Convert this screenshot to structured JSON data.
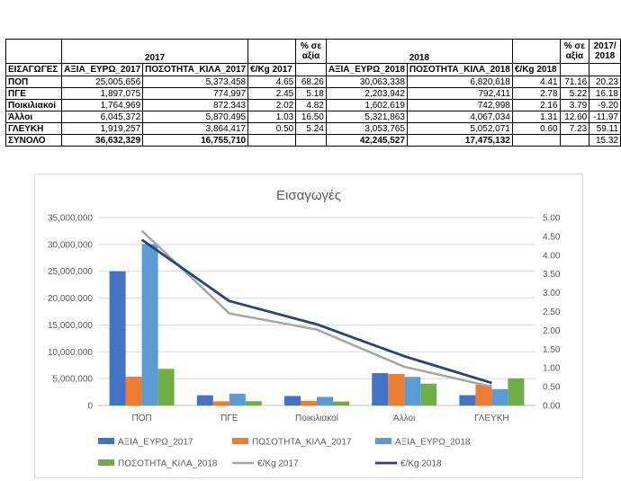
{
  "table": {
    "head1": {
      "y2017": "2017",
      "pct2017": "% σε αξία",
      "y2018": "2018",
      "pct2018": "% σε αξία",
      "change": "2017/2018"
    },
    "head2": [
      "ΕΙΣΑΓΩΓΕΣ",
      "ΑΞΙΑ_ΕΥΡΩ_2017",
      "ΠΟΣΟΤΗΤΑ_ΚΙΛΑ_2017",
      "€/Kg 2017",
      "",
      "ΑΞΙΑ_ΕΥΡΩ_2018",
      "ΠΟΣΟΤΗΤΑ_ΚΙΛΑ_2018",
      "€/Kg 2018",
      "",
      ""
    ],
    "rows": [
      [
        "ΠΟΠ",
        "25,005,656",
        "5,373,458",
        "4.65",
        "68.26",
        "30,063,338",
        "6,820,618",
        "4.41",
        "71.16",
        "20.23"
      ],
      [
        "ΠΓΕ",
        "1,897,075",
        "774,997",
        "2.45",
        "5.18",
        "2,203,942",
        "792,411",
        "2.78",
        "5.22",
        "16.18"
      ],
      [
        "Ποικιλιακοί",
        "1,764,969",
        "872,343",
        "2.02",
        "4.82",
        "1,602,619",
        "742,998",
        "2.16",
        "3.79",
        "-9.20"
      ],
      [
        "Άλλοι",
        "6,045,372",
        "5,870,495",
        "1.03",
        "16.50",
        "5,321,863",
        "4,067,034",
        "1.31",
        "12.60",
        "-11.97"
      ],
      [
        "ΓΛΕΥΚΗ",
        "1,919,257",
        "3,864,417",
        "0.50",
        "5.24",
        "3,053,765",
        "5,052,071",
        "0.60",
        "7.23",
        "59.11"
      ]
    ],
    "total": [
      "ΣΥΝΟΛΟ",
      "36,632,329",
      "16,755,710",
      "",
      "",
      "42,245,527",
      "17,475,132",
      "",
      "",
      "15.32"
    ]
  },
  "chart_data": {
    "type": "bar",
    "title": "Εισαγωγές",
    "categories": [
      "ΠΟΠ",
      "ΠΓΕ",
      "Ποικιλιακοί",
      "Άλλοι",
      "ΓΛΕΥΚΗ"
    ],
    "series": [
      {
        "name": "ΑΞΙΑ_ΕΥΡΩ_2017",
        "type": "bar",
        "axis": "left",
        "color": "#4472c4",
        "values": [
          25005656,
          1897075,
          1764969,
          6045372,
          1919257
        ]
      },
      {
        "name": "ΠΟΣΟΤΗΤΑ_ΚΙΛΑ_2017",
        "type": "bar",
        "axis": "left",
        "color": "#ed7d31",
        "values": [
          5373458,
          774997,
          872343,
          5870495,
          3864417
        ]
      },
      {
        "name": "ΑΞΙΑ_ΕΥΡΩ_2018",
        "type": "bar",
        "axis": "left",
        "color": "#5b9bd5",
        "values": [
          30063338,
          2203942,
          1602619,
          5321863,
          3053765
        ]
      },
      {
        "name": "ΠΟΣΟΤΗΤΑ_ΚΙΛΑ_2018",
        "type": "bar",
        "axis": "left",
        "color": "#70ad47",
        "values": [
          6820618,
          792411,
          742998,
          4067034,
          5052071
        ]
      },
      {
        "name": "€/Kg 2017",
        "type": "line",
        "axis": "right",
        "color": "#a5a5a5",
        "values": [
          4.65,
          2.45,
          2.02,
          1.03,
          0.5
        ]
      },
      {
        "name": "€/Kg 2018",
        "type": "line",
        "axis": "right",
        "color": "#264478",
        "values": [
          4.41,
          2.78,
          2.16,
          1.31,
          0.6
        ]
      }
    ],
    "left_axis": {
      "min": 0,
      "max": 35000000,
      "step": 5000000,
      "tick_labels": [
        "0",
        "5,000,000",
        "10,000,000",
        "15,000,000",
        "20,000,000",
        "25,000,000",
        "30,000,000",
        "35,000,000"
      ]
    },
    "right_axis": {
      "min": 0,
      "max": 5,
      "step": 0.5,
      "tick_labels": [
        "0.00",
        "0.50",
        "1.00",
        "1.50",
        "2.00",
        "2.50",
        "3.00",
        "3.50",
        "4.00",
        "4.50",
        "5.00"
      ]
    },
    "grid": true,
    "legend": "bottom"
  }
}
